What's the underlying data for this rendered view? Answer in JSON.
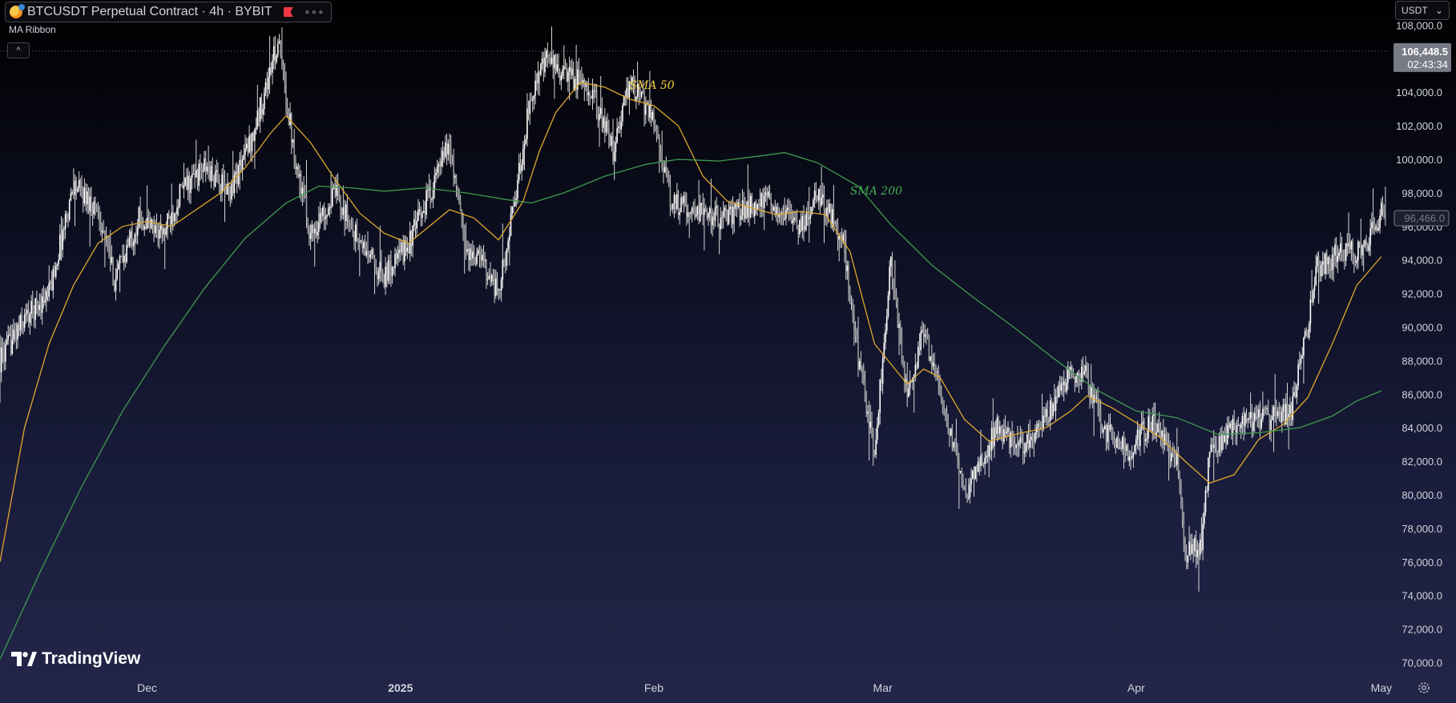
{
  "header": {
    "title": "BTCUSDT Perpetual Contract · 4h · BYBIT",
    "more_label": "∘∘∘",
    "indicator_label": "MA Ribbon",
    "collapse_label": "^",
    "currency": "USDT",
    "currency_caret": "⌄"
  },
  "brand": {
    "name": "TradingView",
    "logo_icon": "tradingview-logo-icon"
  },
  "icons": {
    "settings": "settings-icon"
  },
  "colors": {
    "sma50": "#e0a82e",
    "sma200": "#3f9a4f",
    "candle": "#d6d6d6",
    "price_tag_bg": "#787b86"
  },
  "price_labels": {
    "current_price": "106,448.5",
    "countdown": "02:43:34",
    "crosshair_price": "96,466.0"
  },
  "chart_data": {
    "type": "candlestick",
    "title": "BTCUSDT Perpetual Contract · 4h · BYBIT",
    "interval": "4h",
    "ylim": [
      69500,
      109500
    ],
    "y_ticks": [
      {
        "value": 108000,
        "label": "108,000.0"
      },
      {
        "value": 106000,
        "label": "106,000.0"
      },
      {
        "value": 104000,
        "label": "104,000.0"
      },
      {
        "value": 102000,
        "label": "102,000.0"
      },
      {
        "value": 100000,
        "label": "100,000.0"
      },
      {
        "value": 98000,
        "label": "98,000.0"
      },
      {
        "value": 96000,
        "label": "96,000.0"
      },
      {
        "value": 94000,
        "label": "94,000.0"
      },
      {
        "value": 92000,
        "label": "92,000.0"
      },
      {
        "value": 90000,
        "label": "90,000.0"
      },
      {
        "value": 88000,
        "label": "88,000.0"
      },
      {
        "value": 86000,
        "label": "86,000.0"
      },
      {
        "value": 84000,
        "label": "84,000.0"
      },
      {
        "value": 82000,
        "label": "82,000.0"
      },
      {
        "value": 80000,
        "label": "80,000.0"
      },
      {
        "value": 78000,
        "label": "78,000.0"
      },
      {
        "value": 76000,
        "label": "76,000.0"
      },
      {
        "value": 74000,
        "label": "74,000.0"
      },
      {
        "value": 72000,
        "label": "72,000.0"
      },
      {
        "value": 70000,
        "label": "70,000.0"
      }
    ],
    "xlim": [
      "2024-11-13",
      "2025-05-02"
    ],
    "x_ticks": [
      {
        "date": "2024-12-01",
        "label": "Dec"
      },
      {
        "date": "2025-01-01",
        "label": "2025"
      },
      {
        "date": "2025-02-01",
        "label": "Feb"
      },
      {
        "date": "2025-03-01",
        "label": "Mar"
      },
      {
        "date": "2025-04-01",
        "label": "Apr"
      },
      {
        "date": "2025-05-01",
        "label": "May"
      }
    ],
    "current_price": 106448.5,
    "crosshair_price": 96466.0,
    "price_path": [
      [
        "2024-11-13",
        88000
      ],
      [
        "2024-11-16",
        90500
      ],
      [
        "2024-11-19",
        92000
      ],
      [
        "2024-11-22",
        98500
      ],
      [
        "2024-11-25",
        97000
      ],
      [
        "2024-11-27",
        92800
      ],
      [
        "2024-11-30",
        96500
      ],
      [
        "2024-12-03",
        95500
      ],
      [
        "2024-12-05",
        98000
      ],
      [
        "2024-12-08",
        99500
      ],
      [
        "2024-12-11",
        98000
      ],
      [
        "2024-12-14",
        101500
      ],
      [
        "2024-12-17",
        107000
      ],
      [
        "2024-12-19",
        100500
      ],
      [
        "2024-12-21",
        95500
      ],
      [
        "2024-12-24",
        98000
      ],
      [
        "2024-12-27",
        95000
      ],
      [
        "2024-12-30",
        93000
      ],
      [
        "2025-01-02",
        95000
      ],
      [
        "2025-01-05",
        98500
      ],
      [
        "2025-01-07",
        101000
      ],
      [
        "2025-01-09",
        94500
      ],
      [
        "2025-01-11",
        94000
      ],
      [
        "2025-01-13",
        92000
      ],
      [
        "2025-01-15",
        97500
      ],
      [
        "2025-01-17",
        104000
      ],
      [
        "2025-01-19",
        106000
      ],
      [
        "2025-01-21",
        105000
      ],
      [
        "2025-01-24",
        104500
      ],
      [
        "2025-01-27",
        100500
      ],
      [
        "2025-01-29",
        104500
      ],
      [
        "2025-02-01",
        102500
      ],
      [
        "2025-02-03",
        97500
      ],
      [
        "2025-02-06",
        97000
      ],
      [
        "2025-02-09",
        96500
      ],
      [
        "2025-02-12",
        97000
      ],
      [
        "2025-02-15",
        97500
      ],
      [
        "2025-02-19",
        96000
      ],
      [
        "2025-02-21",
        98000
      ],
      [
        "2025-02-24",
        95500
      ],
      [
        "2025-02-26",
        88000
      ],
      [
        "2025-02-28",
        82500
      ],
      [
        "2025-03-02",
        94000
      ],
      [
        "2025-03-04",
        85500
      ],
      [
        "2025-03-06",
        90000
      ],
      [
        "2025-03-08",
        86000
      ],
      [
        "2025-03-11",
        80000
      ],
      [
        "2025-03-13",
        82000
      ],
      [
        "2025-03-15",
        84000
      ],
      [
        "2025-03-18",
        83000
      ],
      [
        "2025-03-21",
        84500
      ],
      [
        "2025-03-24",
        87500
      ],
      [
        "2025-03-26",
        87000
      ],
      [
        "2025-03-28",
        84000
      ],
      [
        "2025-03-31",
        82500
      ],
      [
        "2025-04-03",
        84500
      ],
      [
        "2025-04-06",
        82000
      ],
      [
        "2025-04-07",
        76500
      ],
      [
        "2025-04-09",
        77000
      ],
      [
        "2025-04-10",
        82500
      ],
      [
        "2025-04-12",
        83500
      ],
      [
        "2025-04-14",
        84500
      ],
      [
        "2025-04-17",
        84500
      ],
      [
        "2025-04-20",
        85000
      ],
      [
        "2025-04-22",
        90000
      ],
      [
        "2025-04-23",
        93500
      ],
      [
        "2025-04-26",
        94500
      ],
      [
        "2025-04-29",
        94500
      ],
      [
        "2025-05-01",
        97000
      ]
    ],
    "series": [
      {
        "name": "SMA 50",
        "color": "#e0a82e",
        "label_at": [
          "2025-01-29",
          104200
        ],
        "points": [
          [
            "2024-11-13",
            76000
          ],
          [
            "2024-11-16",
            84000
          ],
          [
            "2024-11-19",
            89000
          ],
          [
            "2024-11-22",
            92500
          ],
          [
            "2024-11-25",
            95000
          ],
          [
            "2024-11-28",
            96000
          ],
          [
            "2024-12-01",
            96300
          ],
          [
            "2024-12-04",
            96000
          ],
          [
            "2024-12-07",
            97000
          ],
          [
            "2024-12-10",
            98000
          ],
          [
            "2024-12-13",
            99500
          ],
          [
            "2024-12-16",
            101500
          ],
          [
            "2024-12-18",
            102600
          ],
          [
            "2024-12-21",
            101000
          ],
          [
            "2024-12-24",
            98800
          ],
          [
            "2024-12-27",
            96800
          ],
          [
            "2024-12-30",
            95600
          ],
          [
            "2025-01-02",
            95000
          ],
          [
            "2025-01-05",
            96200
          ],
          [
            "2025-01-07",
            97000
          ],
          [
            "2025-01-10",
            96500
          ],
          [
            "2025-01-13",
            95200
          ],
          [
            "2025-01-16",
            97500
          ],
          [
            "2025-01-18",
            100500
          ],
          [
            "2025-01-20",
            102800
          ],
          [
            "2025-01-23",
            104600
          ],
          [
            "2025-01-26",
            104300
          ],
          [
            "2025-01-29",
            103600
          ],
          [
            "2025-02-01",
            103200
          ],
          [
            "2025-02-04",
            102000
          ],
          [
            "2025-02-07",
            99000
          ],
          [
            "2025-02-10",
            97500
          ],
          [
            "2025-02-13",
            97100
          ],
          [
            "2025-02-16",
            96700
          ],
          [
            "2025-02-19",
            96900
          ],
          [
            "2025-02-22",
            96700
          ],
          [
            "2025-02-25",
            94500
          ],
          [
            "2025-02-28",
            89000
          ],
          [
            "2025-03-02",
            87800
          ],
          [
            "2025-03-04",
            86600
          ],
          [
            "2025-03-06",
            87500
          ],
          [
            "2025-03-08",
            87000
          ],
          [
            "2025-03-11",
            84500
          ],
          [
            "2025-03-14",
            83200
          ],
          [
            "2025-03-18",
            83700
          ],
          [
            "2025-03-21",
            84000
          ],
          [
            "2025-03-24",
            85000
          ],
          [
            "2025-03-26",
            85900
          ],
          [
            "2025-03-29",
            85200
          ],
          [
            "2025-04-01",
            84300
          ],
          [
            "2025-04-04",
            83400
          ],
          [
            "2025-04-07",
            82000
          ],
          [
            "2025-04-10",
            80700
          ],
          [
            "2025-04-13",
            81200
          ],
          [
            "2025-04-16",
            83300
          ],
          [
            "2025-04-19",
            84200
          ],
          [
            "2025-04-22",
            85800
          ],
          [
            "2025-04-25",
            89000
          ],
          [
            "2025-04-28",
            92500
          ],
          [
            "2025-05-01",
            94200
          ]
        ]
      },
      {
        "name": "SMA 200",
        "color": "#3f9a4f",
        "label_at": [
          "2025-02-25",
          97900
        ],
        "points": [
          [
            "2024-11-13",
            70200
          ],
          [
            "2024-11-18",
            75500
          ],
          [
            "2024-11-23",
            80500
          ],
          [
            "2024-11-28",
            85000
          ],
          [
            "2024-12-03",
            88800
          ],
          [
            "2024-12-08",
            92300
          ],
          [
            "2024-12-13",
            95300
          ],
          [
            "2024-12-18",
            97400
          ],
          [
            "2024-12-22",
            98400
          ],
          [
            "2024-12-26",
            98300
          ],
          [
            "2024-12-30",
            98100
          ],
          [
            "2025-01-04",
            98300
          ],
          [
            "2025-01-09",
            98000
          ],
          [
            "2025-01-14",
            97600
          ],
          [
            "2025-01-17",
            97400
          ],
          [
            "2025-01-21",
            98000
          ],
          [
            "2025-01-26",
            99000
          ],
          [
            "2025-01-31",
            99700
          ],
          [
            "2025-02-04",
            100000
          ],
          [
            "2025-02-09",
            99900
          ],
          [
            "2025-02-14",
            100200
          ],
          [
            "2025-02-17",
            100400
          ],
          [
            "2025-02-21",
            99800
          ],
          [
            "2025-02-26",
            98400
          ],
          [
            "2025-03-02",
            96100
          ],
          [
            "2025-03-07",
            93700
          ],
          [
            "2025-03-12",
            91800
          ],
          [
            "2025-03-17",
            90000
          ],
          [
            "2025-03-22",
            88100
          ],
          [
            "2025-03-27",
            86300
          ],
          [
            "2025-04-01",
            85000
          ],
          [
            "2025-04-06",
            84600
          ],
          [
            "2025-04-11",
            83600
          ],
          [
            "2025-04-16",
            83700
          ],
          [
            "2025-04-21",
            84000
          ],
          [
            "2025-04-25",
            84700
          ],
          [
            "2025-04-28",
            85600
          ],
          [
            "2025-05-01",
            86200
          ]
        ]
      }
    ]
  }
}
